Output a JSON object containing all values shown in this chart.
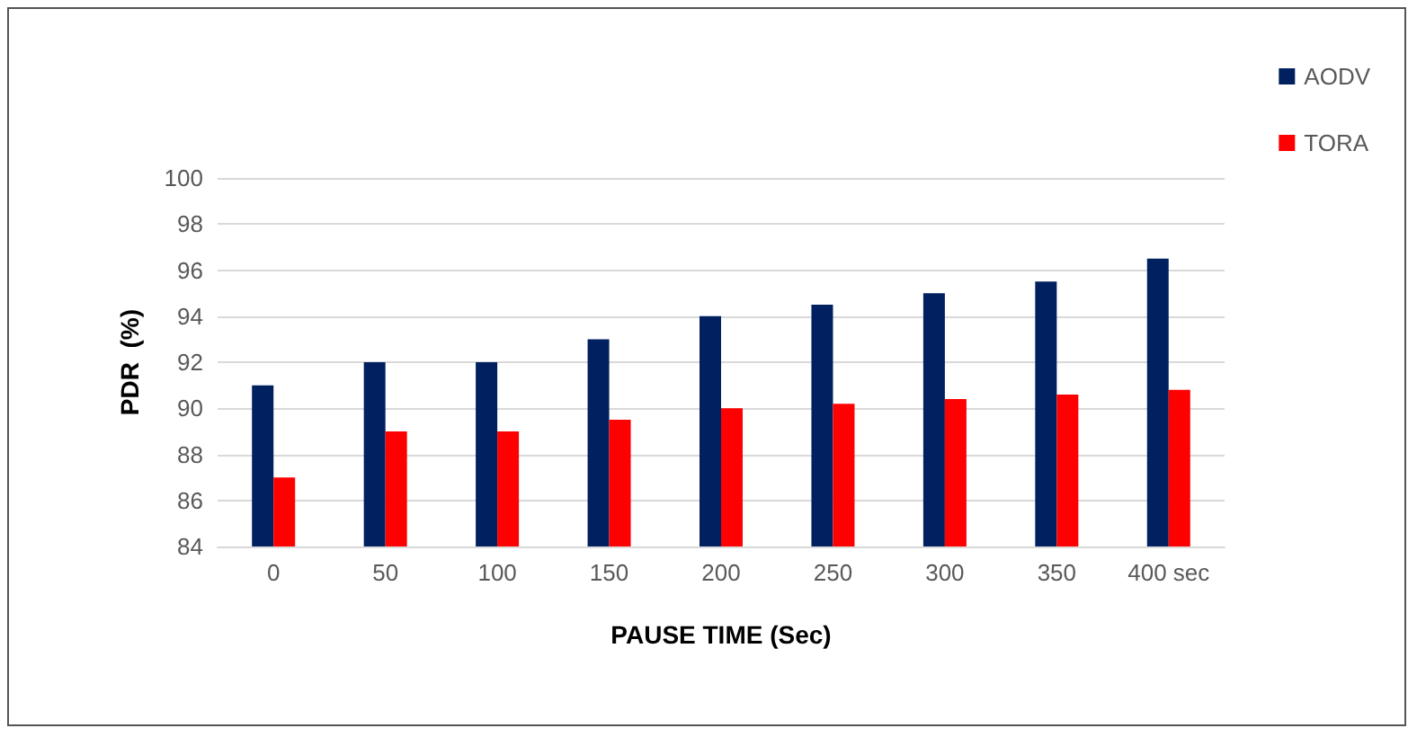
{
  "chart_data": {
    "type": "bar",
    "xlabel": "PAUSE TIME (Sec)",
    "ylabel": "PDR  (%)",
    "categories": [
      "0",
      "50",
      "100",
      "150",
      "200",
      "250",
      "300",
      "350",
      "400 sec"
    ],
    "series": [
      {
        "name": "AODV",
        "color": "#002060",
        "values": [
          91,
          92,
          92,
          93,
          94,
          94.5,
          95,
          95.5,
          96.5
        ]
      },
      {
        "name": "TORA",
        "color": "#ff0000",
        "values": [
          87,
          89,
          89,
          89.5,
          90,
          90.2,
          90.4,
          90.6,
          90.8
        ]
      }
    ],
    "ylim": [
      84,
      100
    ],
    "yticks": [
      84,
      86,
      88,
      90,
      92,
      94,
      96,
      98,
      100
    ],
    "grid": "y",
    "legend": "top right"
  }
}
